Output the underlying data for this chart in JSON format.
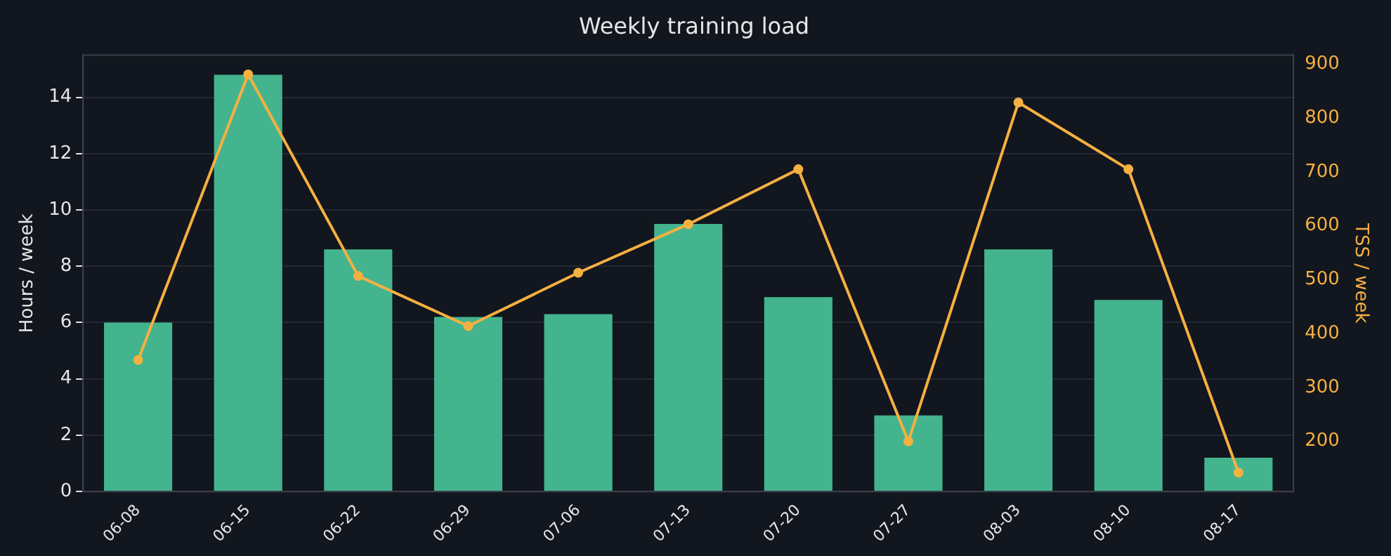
{
  "chart_data": {
    "type": "bar",
    "title": "Weekly training load",
    "ylabel": "Hours / week",
    "y2label": "TSS / week",
    "categories": [
      "06-08",
      "06-15",
      "06-22",
      "06-29",
      "07-06",
      "07-13",
      "07-20",
      "07-27",
      "08-03",
      "08-10",
      "08-17"
    ],
    "series": [
      {
        "color": "#43b48e",
        "values": [
          6.0,
          14.8,
          8.6,
          6.2,
          6.3,
          9.5,
          6.9,
          2.7,
          8.6,
          6.8,
          1.2
        ]
      },
      {
        "type": "line",
        "axis": "y2",
        "color": "#f5b041",
        "values": [
          351,
          881,
          507,
          414,
          513,
          603,
          705,
          200,
          829,
          705,
          142
        ]
      }
    ],
    "ylim": [
      0,
      15.5
    ],
    "yticks": [
      0,
      2,
      4,
      6,
      8,
      10,
      12,
      14
    ],
    "y2lim": [
      107,
      917
    ],
    "y2ticks": [
      200,
      300,
      400,
      500,
      600,
      700,
      800,
      900
    ],
    "grid": "y",
    "marker": "circle",
    "line_style": "solid",
    "legend": false
  }
}
